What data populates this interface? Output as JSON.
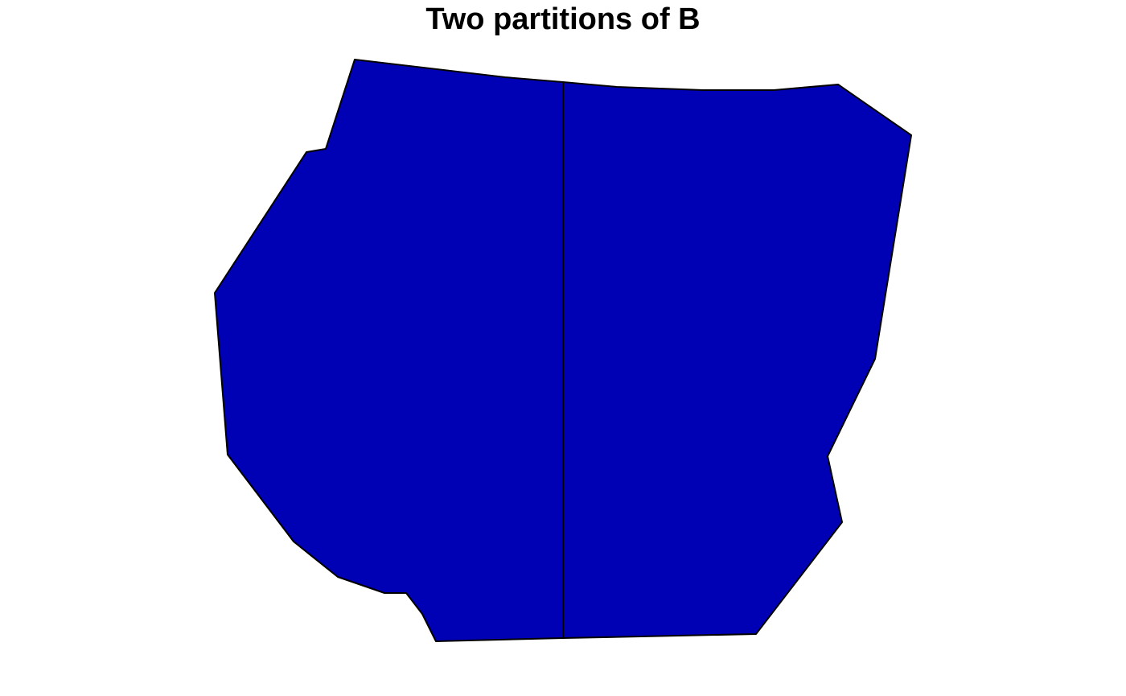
{
  "title": "Two partitions of B",
  "fill_color": "#0000B5",
  "stroke_color": "#000000"
}
